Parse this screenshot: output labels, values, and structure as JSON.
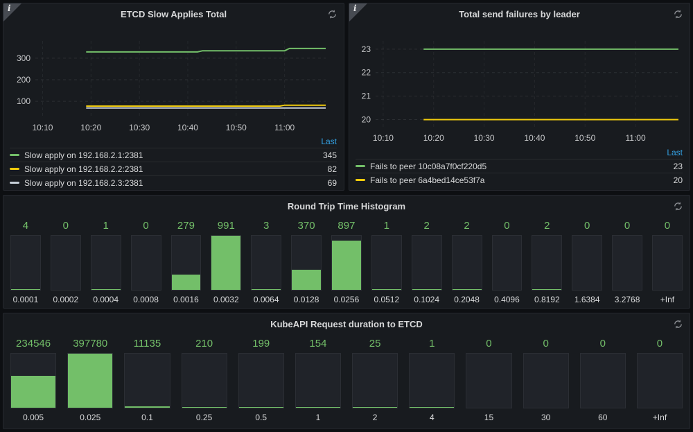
{
  "colors": {
    "green": "#73bf69",
    "yellow": "#f2cc0c",
    "gray_blue": "#c7d0d9",
    "link_blue": "#33a2e5",
    "panel_bg": "#181b1f",
    "page_bg": "#0d0f12"
  },
  "icons": {
    "info_glyph": "i",
    "refresh": "sync-arrows"
  },
  "chart_data": [
    {
      "id": "etcd-slow-applies-total",
      "type": "line",
      "title": "ETCD Slow Applies Total",
      "legend_header": "Last",
      "x_ticks": [
        "10:10",
        "10:20",
        "10:30",
        "10:40",
        "10:50",
        "11:00"
      ],
      "x_tick_minutes": [
        610,
        620,
        630,
        640,
        650,
        660
      ],
      "x_range_minutes": [
        608.5,
        668.5
      ],
      "y_ticks": [
        100,
        200,
        300
      ],
      "y_range": [
        20,
        380
      ],
      "legend_position": "bottom-table",
      "grid": true,
      "series": [
        {
          "name": "Slow apply on 192.168.2.1:2381",
          "color_key": "green",
          "last": 345,
          "points_minutes": [
            [
              619,
              329
            ],
            [
              642,
              329
            ],
            [
              643,
              334
            ],
            [
              660,
              334
            ],
            [
              661,
              345
            ],
            [
              668.5,
              345
            ]
          ]
        },
        {
          "name": "Slow apply on 192.168.2.2:2381",
          "color_key": "yellow",
          "last": 82,
          "points_minutes": [
            [
              619,
              78
            ],
            [
              659,
              78
            ],
            [
              660,
              82
            ],
            [
              668.5,
              82
            ]
          ]
        },
        {
          "name": "Slow apply on 192.168.2.3:2381",
          "color_key": "gray_blue",
          "last": 69,
          "points_minutes": [
            [
              619,
              69
            ],
            [
              668.5,
              69
            ]
          ]
        }
      ]
    },
    {
      "id": "total-send-failures-by-leader",
      "type": "line",
      "title": "Total send failures by leader",
      "legend_header": "Last",
      "x_ticks": [
        "10:10",
        "10:20",
        "10:30",
        "10:40",
        "10:50",
        "11:00"
      ],
      "x_tick_minutes": [
        610,
        620,
        630,
        640,
        650,
        660
      ],
      "x_range_minutes": [
        608.5,
        668.5
      ],
      "y_ticks": [
        20,
        21,
        22,
        23
      ],
      "y_range": [
        19.6,
        23.35
      ],
      "legend_position": "bottom-table",
      "grid": true,
      "series": [
        {
          "name": "Fails to peer 10c08a7f0cf220d5",
          "color_key": "green",
          "last": 23,
          "points_minutes": [
            [
              618,
              23
            ],
            [
              668.5,
              23
            ]
          ]
        },
        {
          "name": "Fails to peer 6a4bed14ce53f7a",
          "color_key": "yellow",
          "last": 20,
          "points_minutes": [
            [
              618,
              20
            ],
            [
              668.5,
              20
            ]
          ]
        }
      ]
    },
    {
      "id": "round-trip-time-histogram",
      "type": "bar",
      "title": "Round Trip Time Histogram",
      "categories": [
        "0.0001",
        "0.0002",
        "0.0004",
        "0.0008",
        "0.0016",
        "0.0032",
        "0.0064",
        "0.0128",
        "0.0256",
        "0.0512",
        "0.1024",
        "0.2048",
        "0.4096",
        "0.8192",
        "1.6384",
        "3.2768",
        "+Inf"
      ],
      "values": [
        4,
        0,
        1,
        0,
        279,
        991,
        3,
        370,
        897,
        1,
        2,
        2,
        0,
        2,
        0,
        0,
        0
      ],
      "value_label_color": "#73bf69",
      "ylim": [
        0,
        991
      ]
    },
    {
      "id": "kubeapi-request-duration-to-etcd",
      "type": "bar",
      "title": "KubeAPI Request duration to ETCD",
      "categories": [
        "0.005",
        "0.025",
        "0.1",
        "0.25",
        "0.5",
        "1",
        "2",
        "4",
        "15",
        "30",
        "60",
        "+Inf"
      ],
      "values": [
        234546,
        397780,
        11135,
        210,
        199,
        154,
        25,
        1,
        0,
        0,
        0,
        0
      ],
      "value_label_color": "#73bf69",
      "ylim": [
        0,
        397780
      ]
    }
  ]
}
